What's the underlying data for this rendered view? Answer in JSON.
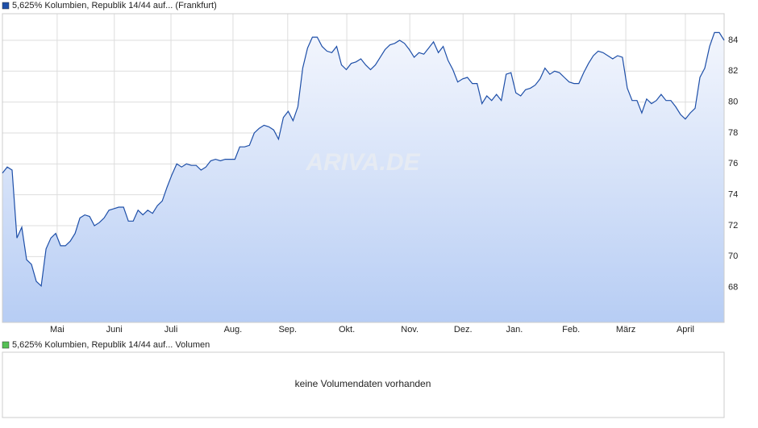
{
  "chart_data": {
    "type": "line",
    "watermark": "ARIVA.DE",
    "series": [
      {
        "name": "5,625% Kolumbien, Republik 14/44 auf... (Frankfurt)",
        "color": "#1e4fa8",
        "values": [
          75.4,
          75.8,
          75.6,
          71.2,
          71.9,
          69.8,
          69.5,
          68.4,
          68.1,
          70.5,
          71.2,
          71.5,
          70.7,
          70.7,
          71.0,
          71.5,
          72.5,
          72.7,
          72.6,
          72.0,
          72.2,
          72.5,
          73.0,
          73.1,
          73.2,
          73.2,
          72.3,
          72.3,
          73.0,
          72.7,
          73.0,
          72.8,
          73.3,
          73.6,
          74.5,
          75.3,
          76.0,
          75.8,
          76.0,
          75.9,
          75.9,
          75.6,
          75.8,
          76.2,
          76.3,
          76.2,
          76.3,
          76.3,
          76.3,
          77.1,
          77.1,
          77.2,
          78.0,
          78.3,
          78.5,
          78.4,
          78.2,
          77.6,
          79.0,
          79.4,
          78.8,
          79.7,
          82.2,
          83.5,
          84.2,
          84.2,
          83.6,
          83.3,
          83.2,
          83.6,
          82.4,
          82.1,
          82.5,
          82.6,
          82.8,
          82.4,
          82.1,
          82.4,
          82.9,
          83.4,
          83.7,
          83.8,
          84.0,
          83.8,
          83.4,
          82.9,
          83.2,
          83.1,
          83.5,
          83.9,
          83.2,
          83.6,
          82.7,
          82.1,
          81.3,
          81.5,
          81.6,
          81.2,
          81.2,
          79.9,
          80.4,
          80.1,
          80.5,
          80.1,
          81.8,
          81.9,
          80.6,
          80.4,
          80.8,
          80.9,
          81.1,
          81.5,
          82.2,
          81.8,
          82.0,
          81.9,
          81.6,
          81.3,
          81.2,
          81.2,
          81.9,
          82.5,
          83.0,
          83.3,
          83.2,
          83.0,
          82.8,
          83.0,
          82.9,
          80.9,
          80.1,
          80.1,
          79.3,
          80.2,
          79.9,
          80.1,
          80.5,
          80.1,
          80.1,
          79.7,
          79.2,
          78.9,
          79.3,
          79.6,
          81.6,
          82.2,
          83.6,
          84.5,
          84.5,
          84.0
        ]
      }
    ],
    "xlim": [
      0,
      149
    ],
    "xticks": [
      {
        "value": 11.3,
        "label": "Mai"
      },
      {
        "value": 23.1,
        "label": "Juni"
      },
      {
        "value": 34.8,
        "label": "Juli"
      },
      {
        "value": 47.6,
        "label": "Aug."
      },
      {
        "value": 58.9,
        "label": "Sep."
      },
      {
        "value": 71.1,
        "label": "Okt."
      },
      {
        "value": 84.1,
        "label": "Nov."
      },
      {
        "value": 95.1,
        "label": "Dez."
      },
      {
        "value": 105.7,
        "label": "Jan."
      },
      {
        "value": 117.4,
        "label": "Feb."
      },
      {
        "value": 128.7,
        "label": "März"
      },
      {
        "value": 141.0,
        "label": "April"
      }
    ],
    "ylim": [
      65.74,
      85.72
    ],
    "yticks": [
      68,
      70,
      72,
      74,
      76,
      78,
      80,
      82,
      84
    ],
    "grid": true
  },
  "volume_panel": {
    "legend": "5,625% Kolumbien, Republik 14/44 auf... Volumen",
    "color": "#55c055",
    "message": "keine Volumendaten vorhanden"
  }
}
